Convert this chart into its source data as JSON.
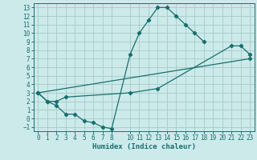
{
  "xlabel": "Humidex (Indice chaleur)",
  "bg_color": "#cceaea",
  "grid_color": "#aacece",
  "line_color": "#1a6e6e",
  "xlim": [
    -0.5,
    23.5
  ],
  "ylim": [
    -1.5,
    13.5
  ],
  "xticks": [
    0,
    1,
    2,
    3,
    4,
    5,
    6,
    7,
    8,
    10,
    11,
    12,
    13,
    14,
    15,
    16,
    17,
    18,
    19,
    20,
    21,
    22,
    23
  ],
  "yticks": [
    -1,
    0,
    1,
    2,
    3,
    4,
    5,
    6,
    7,
    8,
    9,
    10,
    11,
    12,
    13
  ],
  "line1_x": [
    0,
    1,
    2,
    3,
    4,
    5,
    6,
    7,
    8,
    10,
    11,
    12,
    13,
    14,
    15,
    16,
    17,
    18
  ],
  "line1_y": [
    3,
    2,
    1.5,
    0.5,
    0.5,
    -0.3,
    -0.5,
    -1.0,
    -1.2,
    7.5,
    10,
    11.5,
    13,
    13,
    12,
    11,
    10,
    9
  ],
  "line2_x": [
    0,
    1,
    2,
    3,
    10,
    13,
    21,
    22,
    23
  ],
  "line2_y": [
    3,
    2,
    2,
    2.5,
    3,
    3.5,
    8.5,
    8.5,
    7.5
  ],
  "line3_x": [
    0,
    23
  ],
  "line3_y": [
    3,
    7
  ]
}
